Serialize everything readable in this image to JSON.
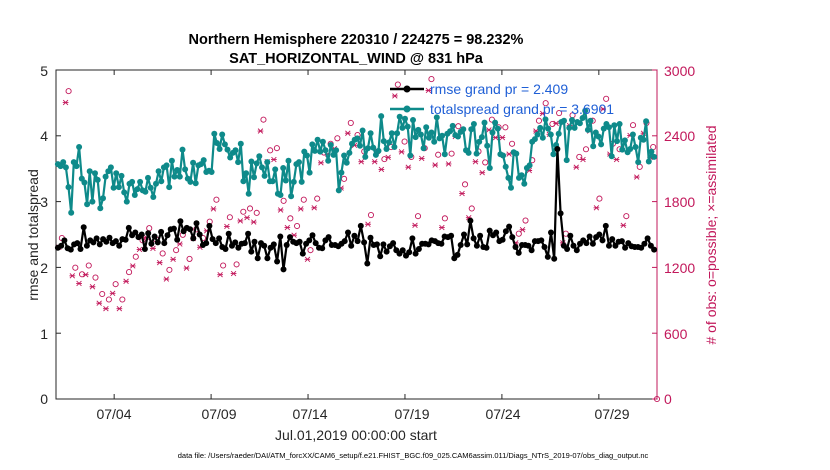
{
  "chart_data": {
    "type": "line",
    "title_line1": "Northern Hemisphere 220310 / 224275 = 98.232%",
    "title_line2": "SAT_HORIZONTAL_WIND @ 831 hPa",
    "xlabel": "Jul.01,2019 00:00:00 start",
    "ylabel_left": "rmse and totalspread",
    "ylabel_right": "# of obs: o=possible; ×=assimilated",
    "x_ticks": [
      "07/04",
      "07/09",
      "07/14",
      "07/19",
      "07/24",
      "07/29"
    ],
    "x_tick_days": [
      4,
      9,
      14,
      19,
      24,
      29
    ],
    "xlim_days": [
      1,
      32
    ],
    "ylim_left": [
      0,
      5
    ],
    "ylim_right": [
      0,
      3000
    ],
    "y_ticks_left": [
      "0",
      "1",
      "2",
      "3",
      "4",
      "5"
    ],
    "y_ticks_right": [
      "0",
      "600",
      "1200",
      "1800",
      "2400",
      "3000"
    ],
    "legend": {
      "position": "top-right",
      "entries": [
        "rmse grand pr = 2.409",
        "totalspread grand pr = 3.6901"
      ]
    },
    "colors": {
      "rmse": "#000000",
      "spread": "#0e8a8a",
      "obs": "#c2185b",
      "legend_text": "#1f5fd6"
    },
    "footer": "data file: /Users/raeder/DAI/ATM_forcXX/CAM6_setup/f.e21.FHIST_BGC.f09_025.CAM6assim.011/Diags_NTrS_2019-07/obs_diag_output.nc",
    "series": [
      {
        "name": "rmse",
        "values": [
          2.3,
          2.33,
          2.41,
          2.29,
          2.27,
          2.35,
          2.37,
          2.28,
          2.61,
          2.33,
          2.41,
          2.38,
          2.44,
          2.35,
          2.43,
          2.39,
          2.45,
          2.37,
          2.4,
          2.33,
          2.43,
          2.42,
          2.6,
          2.49,
          2.53,
          2.46,
          2.5,
          2.28,
          2.52,
          2.36,
          2.47,
          2.38,
          2.54,
          2.37,
          2.49,
          2.58,
          2.59,
          2.42,
          2.7,
          2.55,
          2.6,
          2.58,
          2.44,
          2.67,
          2.5,
          2.34,
          2.37,
          2.63,
          2.43,
          2.37,
          2.44,
          2.31,
          2.28,
          2.51,
          2.33,
          2.38,
          2.3,
          2.36,
          2.37,
          2.51,
          2.24,
          2.39,
          2.14,
          2.37,
          2.33,
          2.14,
          2.3,
          2.35,
          2.09,
          2.47,
          1.97,
          2.34,
          2.46,
          2.39,
          2.37,
          2.39,
          2.21,
          2.36,
          2.41,
          2.49,
          2.37,
          2.3,
          2.29,
          2.41,
          2.46,
          2.34,
          2.34,
          2.32,
          2.36,
          2.4,
          2.53,
          2.33,
          2.48,
          2.4,
          2.63,
          2.38,
          2.06,
          2.45,
          2.34,
          2.35,
          2.17,
          2.35,
          2.24,
          2.32,
          2.37,
          2.26,
          2.21,
          2.26,
          2.18,
          2.23,
          2.44,
          2.21,
          2.28,
          2.36,
          2.36,
          2.35,
          2.41,
          2.4,
          2.37,
          2.36,
          2.47,
          2.46,
          2.48,
          2.14,
          2.19,
          2.34,
          2.5,
          2.35,
          2.71,
          2.44,
          2.33,
          2.48,
          2.31,
          2.3,
          2.56,
          2.49,
          2.53,
          2.4,
          2.42,
          2.55,
          2.62,
          2.46,
          2.31,
          2.22,
          2.34,
          2.34,
          2.33,
          2.26,
          2.4,
          2.4,
          2.41,
          2.31,
          2.16,
          2.53,
          2.13,
          3.8,
          2.82,
          2.33,
          2.28,
          2.48,
          2.33,
          2.26,
          2.36,
          2.41,
          2.37,
          2.47,
          2.36,
          2.46,
          2.5,
          2.41,
          2.63,
          2.33,
          2.43,
          2.33,
          2.39,
          2.4,
          2.3,
          2.37,
          2.32,
          2.31,
          2.31,
          2.3,
          2.36,
          2.44,
          2.33,
          2.27
        ]
      },
      {
        "name": "totalspread",
        "values": [
          3.57,
          3.54,
          3.6,
          3.52,
          3.22,
          2.83,
          3.6,
          3.54,
          3.83,
          3.35,
          3.29,
          2.96,
          3.46,
          3.0,
          3.43,
          3.33,
          2.9,
          3.05,
          3.38,
          3.46,
          3.52,
          3.21,
          3.43,
          3.22,
          3.39,
          3.14,
          3.0,
          3.27,
          3.3,
          3.1,
          3.19,
          3.3,
          3.17,
          3.15,
          3.36,
          3.21,
          3.07,
          3.27,
          3.46,
          3.31,
          3.52,
          3.55,
          3.22,
          3.62,
          3.38,
          3.48,
          3.38,
          3.79,
          3.49,
          3.35,
          3.3,
          3.59,
          3.28,
          3.55,
          3.57,
          3.63,
          3.45,
          3.47,
          3.45,
          4.03,
          3.89,
          3.8,
          4.02,
          3.87,
          3.79,
          3.67,
          3.74,
          3.78,
          3.6,
          3.88,
          3.31,
          3.43,
          3.12,
          3.61,
          3.37,
          3.58,
          3.69,
          3.52,
          3.39,
          3.6,
          3.31,
          3.31,
          3.49,
          3.12,
          3.1,
          3.51,
          3.32,
          3.62,
          3.08,
          3.3,
          3.57,
          3.6,
          3.3,
          3.76,
          3.7,
          3.44,
          3.87,
          3.77,
          3.94,
          3.76,
          3.91,
          3.78,
          3.62,
          3.86,
          3.71,
          3.78,
          3.17,
          3.44,
          3.7,
          3.59,
          3.74,
          3.88,
          3.94,
          3.96,
          3.85,
          4.08,
          3.68,
          3.81,
          4.04,
          3.82,
          3.71,
          3.77,
          4.3,
          3.92,
          3.8,
          3.9,
          4.04,
          3.83,
          4.04,
          4.29,
          4.12,
          4.26,
          4.14,
          3.7,
          4.24,
          3.98,
          4.09,
          4.02,
          3.81,
          4.13,
          3.97,
          4.05,
          3.91,
          4.28,
          3.96,
          4.0,
          3.72,
          4.03,
          4.07,
          4.15,
          4.01,
          3.99,
          4.06,
          4.1,
          3.78,
          3.74,
          4.1,
          4.18,
          3.73,
          3.91,
          3.98,
          4.2,
          3.85,
          3.51,
          4.05,
          4.2,
          4.11,
          3.72,
          3.7,
          3.53,
          3.36,
          3.21,
          3.75,
          3.73,
          3.36,
          3.4,
          3.27,
          3.51,
          3.55,
          3.91,
          3.95,
          4.02,
          4.12,
          3.97,
          4.25,
          4.11,
          4.02,
          3.72,
          3.86,
          4.03,
          4.21,
          4.23,
          3.63,
          4.12,
          4.24,
          4.12,
          4.21,
          4.19,
          4.27,
          4.38,
          4.09,
          4.23,
          3.84,
          4.05,
          3.99,
          3.87,
          4.11,
          4.18,
          4.13,
          3.69,
          4.16,
          3.92,
          4.18,
          3.79,
          3.93,
          3.75,
          3.8,
          4.02,
          3.83,
          3.6,
          3.97,
          3.94,
          4.22,
          3.61,
          3.76,
          3.68
        ]
      },
      {
        "name": "obs_possible",
        "values": [
          1440,
          2780,
          1170,
          1110,
          1190,
          1080,
          930,
          880,
          1020,
          880,
          1130,
          1270,
          1420,
          1530,
          1430,
          1300,
          1150,
          1330,
          1470,
          1250,
          1520,
          1440,
          1590,
          1790,
          1190,
          1630,
          1200,
          1680,
          1710,
          1670,
          2520,
          2240,
          2260,
          1780,
          1620,
          1550,
          1790,
          1330,
          1800,
          2220,
          2300,
          2350,
          1980,
          2490,
          2380,
          2230,
          1650,
          2230,
          2160,
          2270,
          2840,
          2320,
          2180,
          1640,
          2260,
          2890,
          2200,
          1620,
          2210,
          2460,
          1930,
          1710,
          2230,
          2130,
          2520,
          2450,
          2450,
          2300,
          1480,
          1600,
          2150,
          2510,
          2670,
          2480,
          2580,
          1480,
          2560,
          2180,
          2250,
          2510,
          1800,
          2710,
          2300,
          2250,
          1640,
          2470,
          2090,
          2490,
          2270
        ]
      },
      {
        "name": "obs_assimilated",
        "values": [
          1420,
          2740,
          1160,
          1090,
          1170,
          1060,
          910,
          860,
          1000,
          860,
          1110,
          1250,
          1400,
          1510,
          1410,
          1280,
          1130,
          1310,
          1450,
          1230,
          1500,
          1420,
          1570,
          1770,
          1170,
          1610,
          1180,
          1660,
          1690,
          1650,
          2480,
          2200,
          2220,
          1760,
          1600,
          1530,
          1770,
          1310,
          1780,
          2190,
          2270,
          2320,
          1960,
          2460,
          2350,
          2200,
          1630,
          2200,
          2130,
          2240,
          2800,
          2290,
          2150,
          1620,
          2230,
          2850,
          2170,
          1600,
          2180,
          2430,
          1910,
          1690,
          2200,
          2100,
          2490,
          2420,
          2420,
          2270,
          1460,
          1580,
          2120,
          2480,
          2640,
          2450,
          2550,
          1460,
          2530,
          2150,
          2220,
          2480,
          1780,
          2680,
          2270,
          2220,
          1620,
          2440,
          2060,
          2460,
          2240
        ]
      }
    ]
  }
}
